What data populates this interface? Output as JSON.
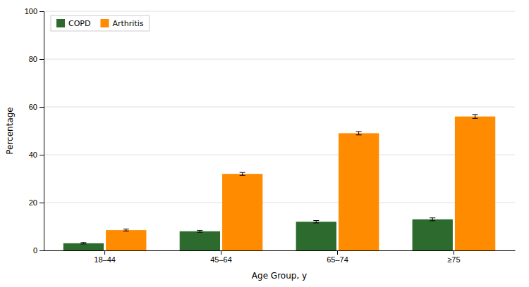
{
  "chart_data": {
    "type": "bar",
    "xlabel": "Age Group, y",
    "ylabel": "Percentage",
    "categories": [
      "18–44",
      "45–64",
      "65–74",
      "≥75"
    ],
    "series": [
      {
        "name": "COPD",
        "color": "#2d6a2d",
        "values": [
          3.0,
          8.0,
          12.0,
          13.0
        ],
        "errors": [
          0.3,
          0.4,
          0.5,
          0.6
        ]
      },
      {
        "name": "Arthritis",
        "color": "#ff8c00",
        "values": [
          8.5,
          32.0,
          49.0,
          56.0
        ],
        "errors": [
          0.4,
          0.6,
          0.7,
          0.8
        ]
      }
    ],
    "ylim": [
      0,
      100
    ],
    "yticks": [
      0,
      20,
      40,
      60,
      80,
      100
    ],
    "grid": true,
    "legend": "upper left"
  }
}
